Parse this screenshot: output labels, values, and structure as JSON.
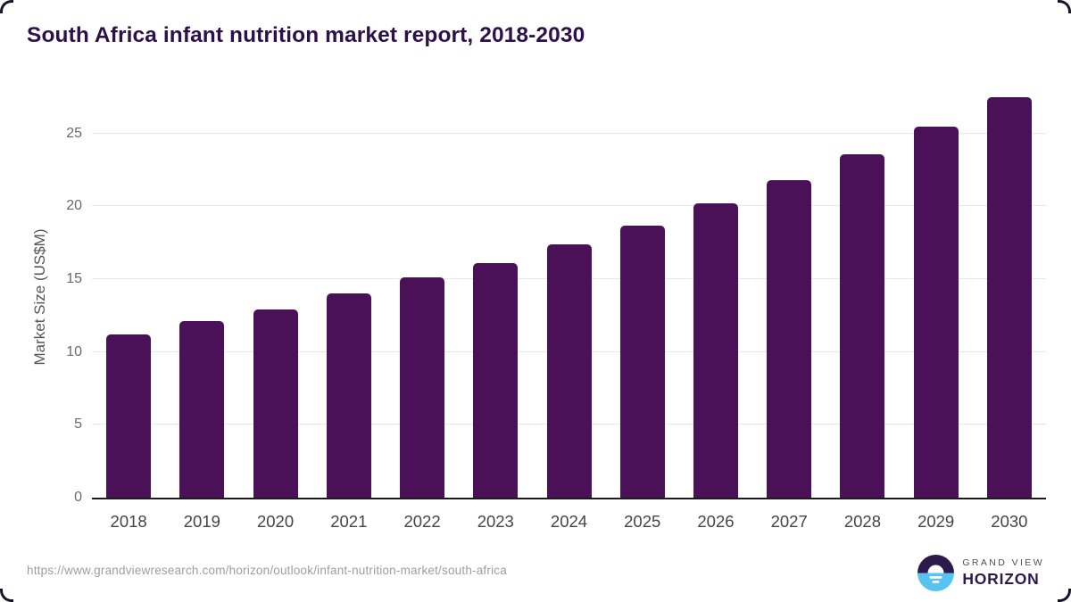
{
  "title": "South Africa infant nutrition market report, 2018-2030",
  "chart_data": {
    "type": "bar",
    "categories": [
      "2018",
      "2019",
      "2020",
      "2021",
      "2022",
      "2023",
      "2024",
      "2025",
      "2026",
      "2027",
      "2028",
      "2029",
      "2030"
    ],
    "values": [
      11.2,
      12.1,
      12.9,
      14.0,
      15.1,
      16.1,
      17.4,
      18.7,
      20.2,
      21.8,
      23.6,
      25.5,
      27.5
    ],
    "title": "South Africa infant nutrition market report, 2018-2030",
    "xlabel": "",
    "ylabel": "Market Size (US$M)",
    "ylim": [
      0,
      27.8
    ],
    "yticks": [
      0,
      5,
      10,
      15,
      20,
      25
    ],
    "grid": true,
    "legend": "none",
    "bar_color": "#4a1158"
  },
  "colors": {
    "title_text": "#2e1148",
    "bar_fill": "#4a1158",
    "gridline": "#e7e7e7",
    "axis_line": "#1b1b1b",
    "tick_text": "#6a6a6a",
    "logo_purple": "#2c1a4d",
    "logo_blue": "#57c3f1"
  },
  "footer": {
    "source_url": "https://www.grandviewresearch.com/horizon/outlook/infant-nutrition-market/south-africa",
    "logo": {
      "line1": "GRAND VIEW",
      "line2": "HORIZON"
    }
  }
}
